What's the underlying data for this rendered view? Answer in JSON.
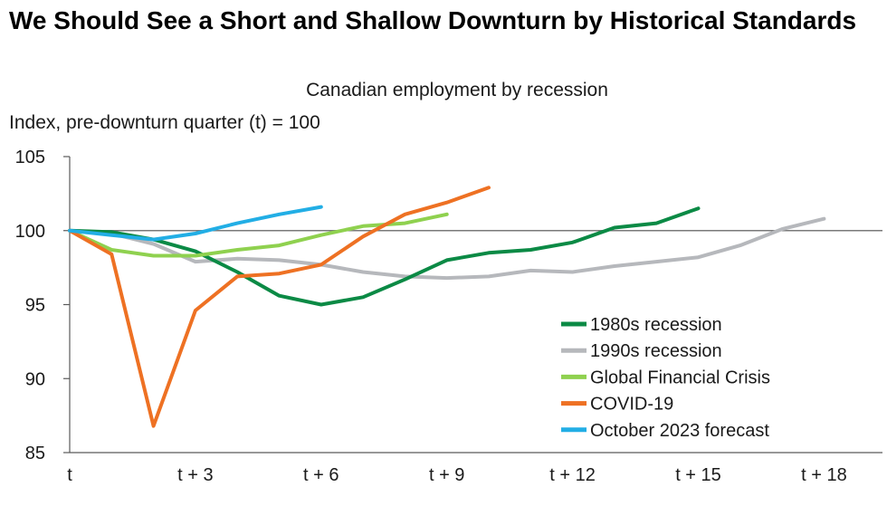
{
  "header": {
    "title": "We Should See a Short and Shallow Downturn by Historical Standards"
  },
  "chart_data": {
    "type": "line",
    "title": "Canadian employment by recession",
    "ylabel": "Index, pre-downturn quarter (t) = 100",
    "xlabel": "",
    "ylim": [
      85,
      105
    ],
    "xlim": [
      0,
      19
    ],
    "y_ticks": [
      85,
      90,
      95,
      100,
      105
    ],
    "x_ticks": [
      {
        "value": 0,
        "label": "t"
      },
      {
        "value": 3,
        "label": "t + 3"
      },
      {
        "value": 6,
        "label": "t + 6"
      },
      {
        "value": 9,
        "label": "t + 9"
      },
      {
        "value": 12,
        "label": "t + 12"
      },
      {
        "value": 15,
        "label": "t + 15"
      },
      {
        "value": 18,
        "label": "t + 18"
      }
    ],
    "reference_line": 100,
    "legend_position": "bottom-right",
    "series": [
      {
        "name": "1980s recession",
        "color": "#0b8a45",
        "x": [
          0,
          1,
          2,
          3,
          4,
          5,
          6,
          7,
          8,
          9,
          10,
          11,
          12,
          13,
          14,
          15
        ],
        "y": [
          100,
          99.9,
          99.4,
          98.6,
          97.2,
          95.6,
          95.0,
          95.5,
          96.7,
          98.0,
          98.5,
          98.7,
          99.2,
          100.2,
          100.5,
          101.5
        ]
      },
      {
        "name": "1990s recession",
        "color": "#b6b8bc",
        "x": [
          0,
          1,
          2,
          3,
          4,
          5,
          6,
          7,
          8,
          9,
          10,
          11,
          12,
          13,
          14,
          15,
          16,
          17,
          18
        ],
        "y": [
          100,
          99.8,
          99.1,
          97.9,
          98.1,
          98.0,
          97.7,
          97.2,
          96.9,
          96.8,
          96.9,
          97.3,
          97.2,
          97.6,
          97.9,
          98.2,
          99.0,
          100.1,
          100.8
        ]
      },
      {
        "name": "Global Financial Crisis",
        "color": "#8fd14f",
        "x": [
          0,
          1,
          2,
          3,
          4,
          5,
          6,
          7,
          8,
          9
        ],
        "y": [
          100,
          98.7,
          98.3,
          98.3,
          98.7,
          99.0,
          99.7,
          100.3,
          100.5,
          101.1
        ]
      },
      {
        "name": "COVID-19",
        "color": "#ee7123",
        "x": [
          0,
          1,
          2,
          3,
          4,
          5,
          6,
          7,
          8,
          9,
          10
        ],
        "y": [
          100,
          98.4,
          86.8,
          94.6,
          96.9,
          97.1,
          97.7,
          99.6,
          101.1,
          101.9,
          102.9
        ]
      },
      {
        "name": "October 2023 forecast",
        "color": "#22aee5",
        "x": [
          0,
          1,
          2,
          3,
          4,
          5,
          6
        ],
        "y": [
          100,
          99.7,
          99.4,
          99.8,
          100.5,
          101.1,
          101.6
        ]
      }
    ]
  }
}
